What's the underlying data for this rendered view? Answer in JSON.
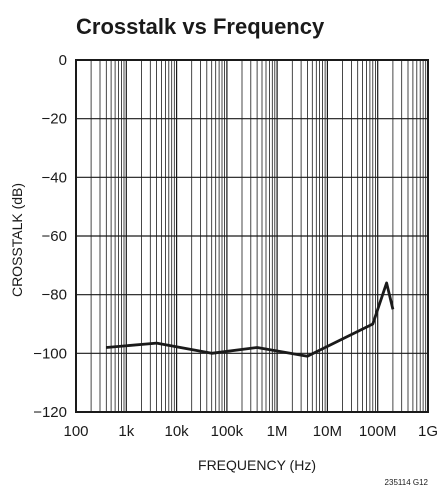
{
  "chart_data": {
    "type": "line",
    "title": "Crosstalk vs Frequency",
    "xlabel": "FREQUENCY (Hz)",
    "ylabel": "CROSSTALK (dB)",
    "x_scale": "log",
    "xlim": [
      100,
      1000000000
    ],
    "ylim": [
      -120,
      0
    ],
    "x_ticks": [
      100,
      1000,
      10000,
      100000,
      1000000,
      10000000,
      100000000,
      1000000000
    ],
    "x_tick_labels": [
      "100",
      "1k",
      "10k",
      "100k",
      "1M",
      "10M",
      "100M",
      "1G"
    ],
    "y_ticks": [
      0,
      -20,
      -40,
      -60,
      -80,
      -100,
      -120
    ],
    "y_tick_labels": [
      "0",
      "−20",
      "−40",
      "−60",
      "−80",
      "−100",
      "−120"
    ],
    "grid": true,
    "series": [
      {
        "x": [
          400,
          4000,
          50000,
          400000,
          4000000,
          80000000,
          150000000,
          200000000
        ],
        "y": [
          -98,
          -96.5,
          -100,
          -98,
          -101,
          -90,
          -76,
          -85
        ]
      }
    ],
    "figure_id": "235114 G12",
    "colors": {
      "line": "#1a1a1a",
      "grid": "#1a1a1a"
    }
  }
}
